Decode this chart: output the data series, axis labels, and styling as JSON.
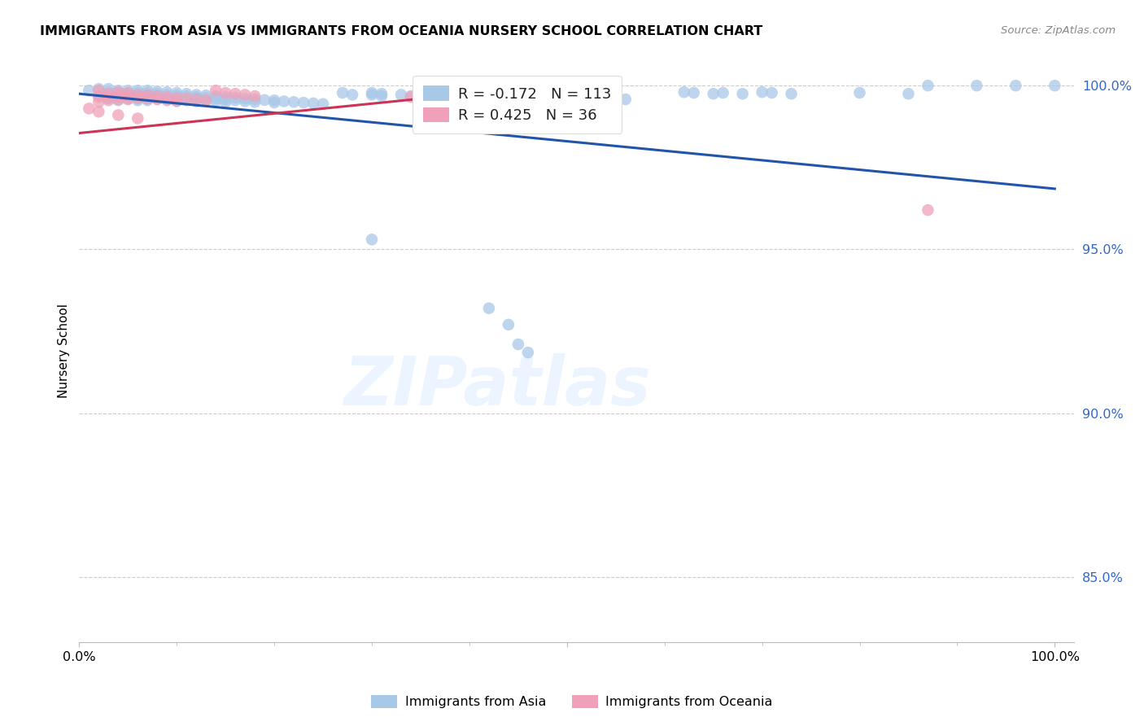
{
  "title": "IMMIGRANTS FROM ASIA VS IMMIGRANTS FROM OCEANIA NURSERY SCHOOL CORRELATION CHART",
  "source": "Source: ZipAtlas.com",
  "ylabel": "Nursery School",
  "y_ticks": [
    0.85,
    0.9,
    0.95,
    1.0
  ],
  "y_tick_labels": [
    "85.0%",
    "90.0%",
    "95.0%",
    "100.0%"
  ],
  "legend_asia_R": "-0.172",
  "legend_asia_N": "113",
  "legend_oceania_R": "0.425",
  "legend_oceania_N": "36",
  "legend_asia_label": "Immigrants from Asia",
  "legend_oceania_label": "Immigrants from Oceania",
  "asia_color": "#a8c8e8",
  "oceania_color": "#f0a0b8",
  "asia_line_color": "#2255aa",
  "oceania_line_color": "#cc3355",
  "asia_scatter_x": [
    0.01,
    0.02,
    0.02,
    0.03,
    0.03,
    0.03,
    0.03,
    0.04,
    0.04,
    0.04,
    0.04,
    0.05,
    0.05,
    0.05,
    0.05,
    0.06,
    0.06,
    0.06,
    0.06,
    0.06,
    0.06,
    0.07,
    0.07,
    0.07,
    0.07,
    0.07,
    0.07,
    0.08,
    0.08,
    0.08,
    0.08,
    0.09,
    0.09,
    0.09,
    0.09,
    0.1,
    0.1,
    0.1,
    0.1,
    0.1,
    0.11,
    0.11,
    0.11,
    0.11,
    0.12,
    0.12,
    0.12,
    0.12,
    0.13,
    0.13,
    0.13,
    0.14,
    0.14,
    0.14,
    0.15,
    0.15,
    0.15,
    0.16,
    0.16,
    0.17,
    0.17,
    0.18,
    0.18,
    0.19,
    0.2,
    0.2,
    0.21,
    0.22,
    0.23,
    0.24,
    0.25,
    0.27,
    0.28,
    0.3,
    0.3,
    0.31,
    0.31,
    0.33,
    0.34,
    0.35,
    0.36,
    0.38,
    0.39,
    0.4,
    0.41,
    0.42,
    0.43,
    0.44,
    0.46,
    0.47,
    0.48,
    0.5,
    0.52,
    0.56,
    0.62,
    0.63,
    0.65,
    0.66,
    0.68,
    0.7,
    0.71,
    0.73,
    0.8,
    0.85,
    0.87,
    0.92,
    0.96,
    1.0,
    0.3,
    0.42,
    0.44,
    0.45,
    0.46
  ],
  "asia_scatter_y": [
    0.9985,
    0.999,
    0.997,
    0.999,
    0.998,
    0.997,
    0.996,
    0.9985,
    0.9975,
    0.9965,
    0.9955,
    0.9985,
    0.9975,
    0.997,
    0.996,
    0.9985,
    0.9978,
    0.997,
    0.9965,
    0.996,
    0.9955,
    0.9985,
    0.9978,
    0.9972,
    0.9968,
    0.996,
    0.9955,
    0.9982,
    0.9975,
    0.9968,
    0.996,
    0.998,
    0.9972,
    0.9965,
    0.9958,
    0.9978,
    0.997,
    0.9965,
    0.996,
    0.9952,
    0.9975,
    0.9968,
    0.9962,
    0.9955,
    0.9972,
    0.9965,
    0.996,
    0.9952,
    0.997,
    0.9963,
    0.9955,
    0.9968,
    0.996,
    0.9953,
    0.9965,
    0.9958,
    0.995,
    0.9963,
    0.9955,
    0.996,
    0.9952,
    0.9958,
    0.995,
    0.9956,
    0.9955,
    0.9948,
    0.9952,
    0.995,
    0.9948,
    0.9946,
    0.9944,
    0.9978,
    0.9972,
    0.9978,
    0.9972,
    0.9975,
    0.9968,
    0.9972,
    0.9968,
    0.9972,
    0.9968,
    0.9965,
    0.9962,
    0.9972,
    0.9968,
    0.9965,
    0.9962,
    0.996,
    0.9968,
    0.9965,
    0.9962,
    0.9962,
    0.996,
    0.9958,
    0.998,
    0.9978,
    0.9975,
    0.9978,
    0.9975,
    0.998,
    0.9978,
    0.9975,
    0.9978,
    0.9975,
    1.0,
    1.0,
    1.0,
    1.0,
    0.953,
    0.932,
    0.927,
    0.921,
    0.9185
  ],
  "oceania_scatter_x": [
    0.01,
    0.02,
    0.02,
    0.02,
    0.03,
    0.03,
    0.03,
    0.04,
    0.04,
    0.04,
    0.05,
    0.05,
    0.05,
    0.06,
    0.06,
    0.07,
    0.07,
    0.08,
    0.08,
    0.09,
    0.09,
    0.1,
    0.1,
    0.11,
    0.12,
    0.13,
    0.14,
    0.15,
    0.16,
    0.17,
    0.18,
    0.34,
    0.87,
    0.02,
    0.04,
    0.06
  ],
  "oceania_scatter_y": [
    0.993,
    0.9985,
    0.9965,
    0.995,
    0.9975,
    0.9965,
    0.9955,
    0.998,
    0.9968,
    0.9958,
    0.9978,
    0.9968,
    0.9958,
    0.9972,
    0.9962,
    0.997,
    0.996,
    0.9968,
    0.9958,
    0.9965,
    0.9955,
    0.9962,
    0.9953,
    0.996,
    0.9958,
    0.9955,
    0.9985,
    0.9978,
    0.9975,
    0.9972,
    0.9968,
    0.9965,
    0.962,
    0.992,
    0.991,
    0.99
  ],
  "asia_line_x": [
    0.0,
    1.0
  ],
  "asia_line_y": [
    0.9975,
    0.9685
  ],
  "oceania_line_x": [
    0.0,
    0.45
  ],
  "oceania_line_y": [
    0.9855,
    0.999
  ],
  "xlim": [
    0.0,
    1.02
  ],
  "ylim": [
    0.83,
    1.008
  ]
}
